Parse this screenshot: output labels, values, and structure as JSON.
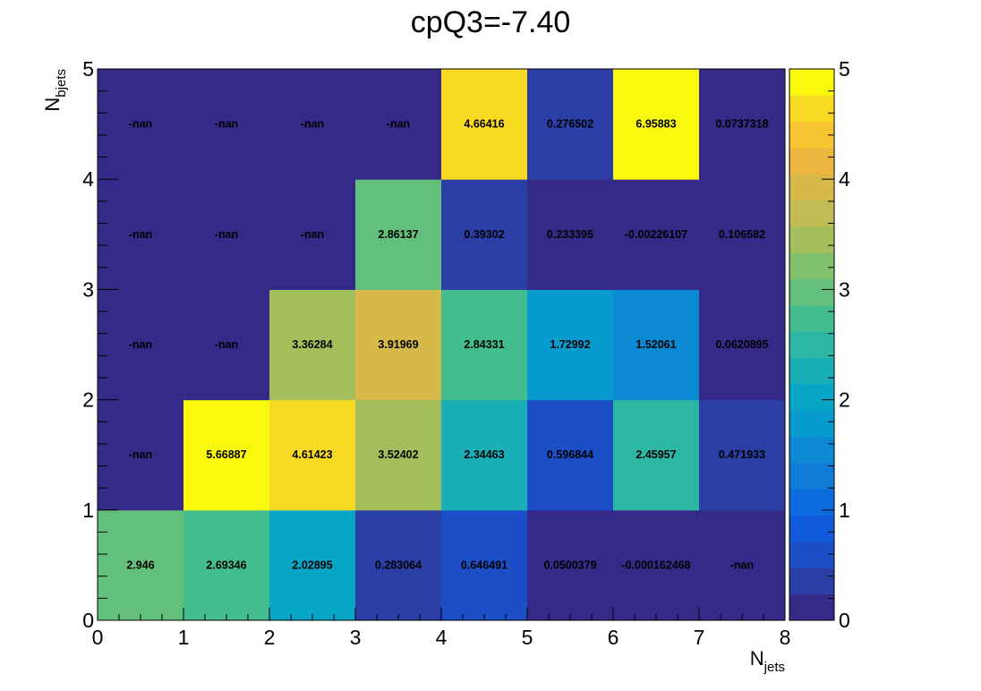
{
  "chart_data": {
    "type": "heatmap",
    "title": "cpQ3=-7.40",
    "xlabel": {
      "main": "N",
      "sub": "jets"
    },
    "ylabel": {
      "main": "N",
      "sub": "bjets"
    },
    "xlim": [
      0,
      8
    ],
    "ylim": [
      0,
      5
    ],
    "zlim": [
      0,
      5
    ],
    "x_ticks": [
      "0",
      "1",
      "2",
      "3",
      "4",
      "5",
      "6",
      "7",
      "8"
    ],
    "y_ticks": [
      "0",
      "1",
      "2",
      "3",
      "4",
      "5"
    ],
    "z_ticks": [
      "0",
      "1",
      "2",
      "3",
      "4",
      "5"
    ],
    "palette": [
      "#352a87",
      "#2a3ea6",
      "#1c4fc7",
      "#0f5bdc",
      "#0c6bde",
      "#107bd7",
      "#0b8ad3",
      "#079bd0",
      "#08a6c6",
      "#18afb6",
      "#2bb7a3",
      "#44bd8e",
      "#63c07c",
      "#82c16b",
      "#a3bf5c",
      "#c0bb52",
      "#d7b94a",
      "#ecb840",
      "#f8c432",
      "#f8da23",
      "#f9f80e"
    ],
    "cells": [
      [
        "2.946",
        "2.69346",
        "2.02895",
        "0.283064",
        "0.646491",
        "0.0500379",
        "-0.000162468",
        "-nan"
      ],
      [
        "-nan",
        "5.66887",
        "4.61423",
        "3.52402",
        "2.34463",
        "0.596844",
        "2.45957",
        "0.471933"
      ],
      [
        "-nan",
        "-nan",
        "3.36284",
        "3.91969",
        "2.84331",
        "1.72992",
        "1.52061",
        "0.0620895"
      ],
      [
        "-nan",
        "-nan",
        "-nan",
        "2.86137",
        "0.39302",
        "0.233395",
        "-0.00226107",
        "0.106582"
      ],
      [
        "-nan",
        "-nan",
        "-nan",
        "-nan",
        "4.66416",
        "0.276502",
        "6.95883",
        "0.0737318"
      ]
    ]
  }
}
